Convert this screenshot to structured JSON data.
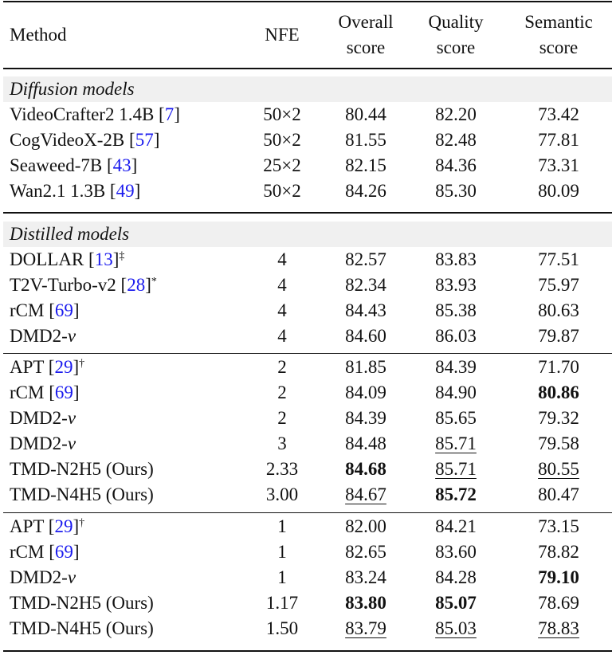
{
  "table": {
    "headers": {
      "method": "Method",
      "nfe": "NFE",
      "overall_1": "Overall",
      "overall_2": "score",
      "quality_1": "Quality",
      "quality_2": "score",
      "semantic_1": "Semantic",
      "semantic_2": "score"
    },
    "sections": {
      "diffusion": "Diffusion models",
      "distilled": "Distilled models"
    },
    "rows": [
      {
        "name": "VideoCrafter2 1.4B ",
        "ref": "7",
        "mark": "",
        "italic_suffix": "",
        "nfe": "50×2",
        "overall": "80.44",
        "quality": "82.20",
        "semantic": "73.42"
      },
      {
        "name": "CogVideoX-2B ",
        "ref": "57",
        "mark": "",
        "italic_suffix": "",
        "nfe": "50×2",
        "overall": "81.55",
        "quality": "82.48",
        "semantic": "77.81"
      },
      {
        "name": "Seaweed-7B ",
        "ref": "43",
        "mark": "",
        "italic_suffix": "",
        "nfe": "25×2",
        "overall": "82.15",
        "quality": "84.36",
        "semantic": "73.31"
      },
      {
        "name": "Wan2.1 1.3B ",
        "ref": "49",
        "mark": "",
        "italic_suffix": "",
        "nfe": "50×2",
        "overall": "84.26",
        "quality": "85.30",
        "semantic": "80.09"
      },
      {
        "name": "DOLLAR ",
        "ref": "13",
        "mark": "‡",
        "italic_suffix": "",
        "nfe": "4",
        "overall": "82.57",
        "quality": "83.83",
        "semantic": "77.51"
      },
      {
        "name": "T2V-Turbo-v2 ",
        "ref": "28",
        "mark": "*",
        "italic_suffix": "",
        "nfe": "4",
        "overall": "82.34",
        "quality": "83.93",
        "semantic": "75.97"
      },
      {
        "name": "rCM ",
        "ref": "69",
        "mark": "",
        "italic_suffix": "",
        "nfe": "4",
        "overall": "84.43",
        "quality": "85.38",
        "semantic": "80.63"
      },
      {
        "name": "DMD2-",
        "ref": "",
        "mark": "",
        "italic_suffix": "v",
        "nfe": "4",
        "overall": "84.60",
        "quality": "86.03",
        "semantic": "79.87"
      },
      {
        "name": "APT ",
        "ref": "29",
        "mark": "†",
        "italic_suffix": "",
        "nfe": "2",
        "overall": "81.85",
        "quality": "84.39",
        "semantic": "71.70"
      },
      {
        "name": "rCM ",
        "ref": "69",
        "mark": "",
        "italic_suffix": "",
        "nfe": "2",
        "overall": "84.09",
        "quality": "84.90",
        "semantic": "80.86"
      },
      {
        "name": "DMD2-",
        "ref": "",
        "mark": "",
        "italic_suffix": "v",
        "nfe": "2",
        "overall": "84.39",
        "quality": "85.65",
        "semantic": "79.32"
      },
      {
        "name": "DMD2-",
        "ref": "",
        "mark": "",
        "italic_suffix": "v",
        "nfe": "3",
        "overall": "84.48",
        "quality": "85.71",
        "semantic": "79.58"
      },
      {
        "name": "TMD-N2H5 (Ours)",
        "ref": "",
        "mark": "",
        "italic_suffix": "",
        "nfe": "2.33",
        "overall": "84.68",
        "quality": "85.71",
        "semantic": "80.55"
      },
      {
        "name": "TMD-N4H5 (Ours)",
        "ref": "",
        "mark": "",
        "italic_suffix": "",
        "nfe": "3.00",
        "overall": "84.67",
        "quality": "85.72",
        "semantic": "80.47"
      },
      {
        "name": "APT ",
        "ref": "29",
        "mark": "†",
        "italic_suffix": "",
        "nfe": "1",
        "overall": "82.00",
        "quality": "84.21",
        "semantic": "73.15"
      },
      {
        "name": "rCM ",
        "ref": "69",
        "mark": "",
        "italic_suffix": "",
        "nfe": "1",
        "overall": "82.65",
        "quality": "83.60",
        "semantic": "78.82"
      },
      {
        "name": "DMD2-",
        "ref": "",
        "mark": "",
        "italic_suffix": "v",
        "nfe": "1",
        "overall": "83.24",
        "quality": "84.28",
        "semantic": "79.10"
      },
      {
        "name": "TMD-N2H5 (Ours)",
        "ref": "",
        "mark": "",
        "italic_suffix": "",
        "nfe": "1.17",
        "overall": "83.80",
        "quality": "85.07",
        "semantic": "78.69"
      },
      {
        "name": "TMD-N4H5 (Ours)",
        "ref": "",
        "mark": "",
        "italic_suffix": "",
        "nfe": "1.50",
        "overall": "83.79",
        "quality": "85.03",
        "semantic": "78.83"
      }
    ],
    "styles": {
      "9": {
        "semantic": "b"
      },
      "11": {
        "quality": "u"
      },
      "12": {
        "overall": "b",
        "quality": "u",
        "semantic": "u"
      },
      "13": {
        "overall": "u",
        "quality": "b"
      },
      "16": {
        "semantic": "b"
      },
      "17": {
        "overall": "b",
        "quality": "b"
      },
      "18": {
        "overall": "u",
        "quality": "u",
        "semantic": "u"
      }
    },
    "colors": {
      "ref_link": "#1a1aee",
      "section_band": "#f0f0f0",
      "rule": "#111111"
    }
  }
}
